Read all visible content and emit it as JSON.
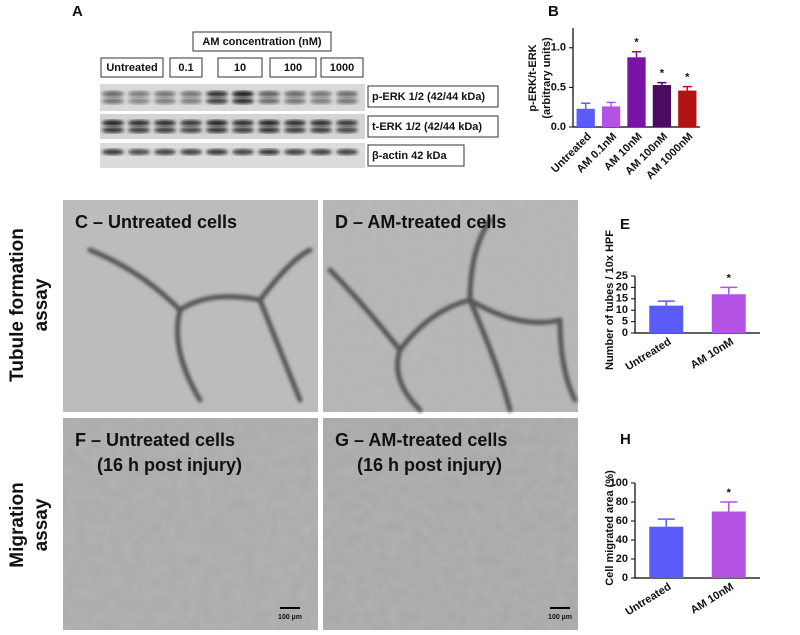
{
  "panel_a": {
    "label": "A",
    "header": "AM concentration (nM)",
    "lanes": [
      "Untreated",
      "0.1",
      "10",
      "100",
      "1000"
    ],
    "bands": [
      "p-ERK 1/2 (42/44 kDa)",
      "t-ERK 1/2 (42/44 kDa)",
      "β-actin 42 kDa"
    ]
  },
  "rows": [
    [
      "Tubule formation",
      "assay"
    ],
    [
      "Migration",
      "assay"
    ]
  ],
  "micrographs": [
    {
      "caption": [
        "C – Untreated cells"
      ]
    },
    {
      "caption": [
        "D – AM-treated cells"
      ]
    },
    {
      "caption": [
        "F – Untreated cells",
        "(16 h post injury)"
      ],
      "scale_bar": "100 µm"
    },
    {
      "caption": [
        "G – AM-treated cells",
        "(16 h post injury)"
      ],
      "scale_bar": "100 µm"
    }
  ],
  "chart_data": [
    {
      "type": "bar",
      "label": "B",
      "y_label": [
        "p-ERK/t-ERK",
        "(arbitrary units)"
      ],
      "categories": [
        "Untreated",
        "AM 0.1nM",
        "AM 10nM",
        "AM 100nM",
        "AM 1000nM"
      ],
      "values": [
        0.23,
        0.26,
        0.88,
        0.53,
        0.46
      ],
      "errors": [
        0.07,
        0.05,
        0.07,
        0.03,
        0.05
      ],
      "colors": [
        "#5b5bf7",
        "#b552e6",
        "#7a12a8",
        "#4b0b5e",
        "#b31313"
      ],
      "significance": [
        null,
        null,
        "*",
        "*",
        "*"
      ],
      "ylim": [
        0,
        1.25
      ],
      "yticks": [
        {
          "value": 0,
          "label": "0.0"
        },
        {
          "value": 0.5,
          "label": "0.5"
        },
        {
          "value": 1,
          "label": "1.0"
        }
      ]
    },
    {
      "type": "bar",
      "label": "E",
      "y_label": [
        "Number of tubes / 10x HPF"
      ],
      "categories": [
        "Untreated",
        "AM 10nM"
      ],
      "values": [
        12,
        17
      ],
      "errors": [
        2,
        3
      ],
      "colors": [
        "#5b5bf7",
        "#b552e6"
      ],
      "significance": [
        null,
        "*"
      ],
      "ylim": [
        0,
        25
      ],
      "yticks": [
        0,
        5,
        10,
        15,
        20,
        25
      ]
    },
    {
      "type": "bar",
      "label": "H",
      "y_label": [
        "Cell migrated area (%)"
      ],
      "categories": [
        "Untreated",
        "AM 10nM"
      ],
      "values": [
        54,
        70
      ],
      "errors": [
        8,
        10
      ],
      "colors": [
        "#5b5bf7",
        "#b552e6"
      ],
      "significance": [
        null,
        "*"
      ],
      "ylim": [
        0,
        100
      ],
      "yticks": [
        0,
        20,
        40,
        60,
        80,
        100
      ]
    }
  ]
}
